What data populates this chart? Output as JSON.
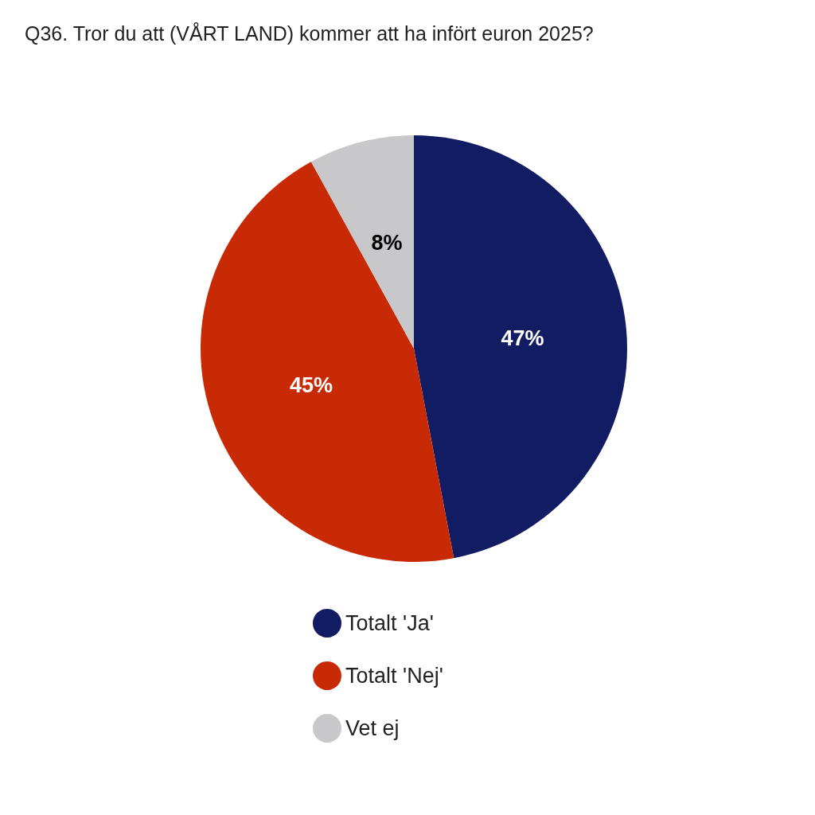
{
  "chart_data": {
    "type": "pie",
    "title": "Q36. Tror du att (VÅRT LAND) kommer att ha infört euron 2025?",
    "categories": [
      "Totalt 'Ja'",
      "Totalt 'Nej'",
      "Vet ej"
    ],
    "values": [
      47,
      45,
      8
    ],
    "colors": [
      "#121c62",
      "#c92a06",
      "#c8c8ca"
    ],
    "value_labels": [
      "47%",
      "45%",
      "8%"
    ],
    "legend": "bottom"
  }
}
